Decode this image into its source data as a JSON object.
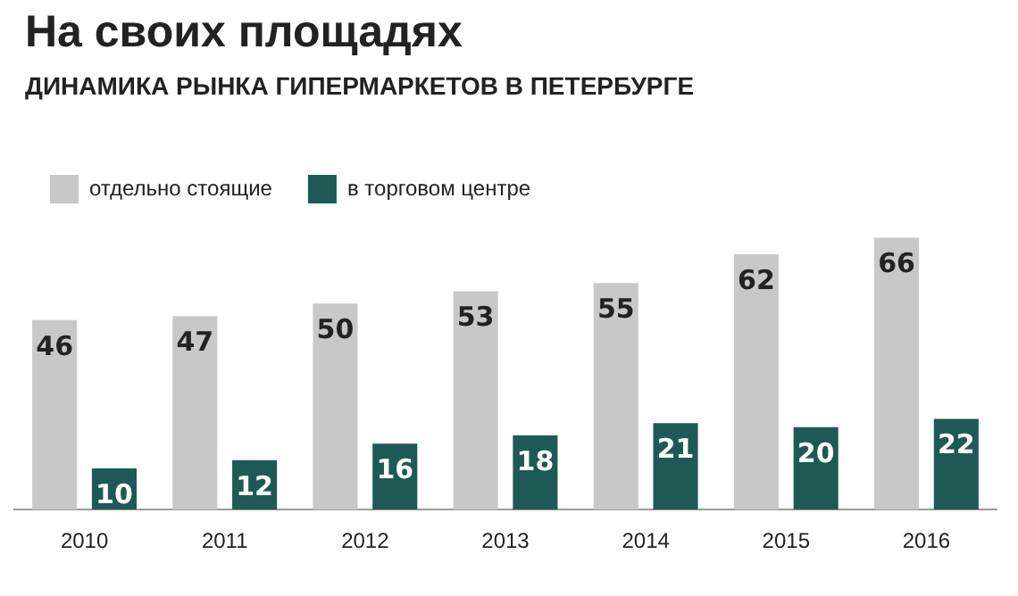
{
  "chart_data": {
    "type": "bar",
    "title": "На своих площадях",
    "subtitle": "ДИНАМИКА РЫНКА ГИПЕРМАРКЕТОВ В ПЕТЕРБУРГЕ",
    "categories": [
      "2010",
      "2011",
      "2012",
      "2013",
      "2014",
      "2015",
      "2016"
    ],
    "series": [
      {
        "name": "отдельно стоящие",
        "color": "#c8c8c8",
        "values": [
          46,
          47,
          50,
          53,
          55,
          62,
          66
        ]
      },
      {
        "name": "в торговом центре",
        "color": "#1e5a55",
        "values": [
          10,
          12,
          16,
          18,
          21,
          20,
          22
        ]
      }
    ],
    "data_labels": true,
    "legend": "top left",
    "grid": false
  }
}
